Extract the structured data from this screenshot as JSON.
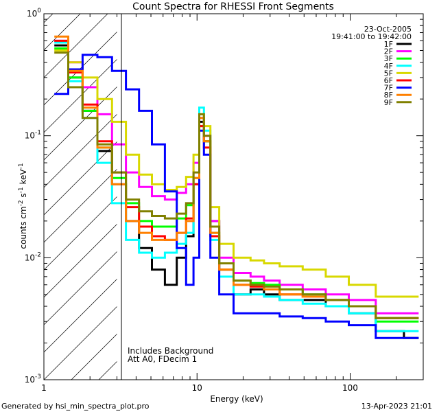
{
  "chart_data": {
    "type": "line",
    "title": "Count Spectra for RHESSI Front Segments",
    "date": "23-Oct-2005",
    "time_range": "19:41:00 to 19:42:00",
    "xlabel": "Energy (keV)",
    "ylabel_parts": [
      "counts cm",
      "-2",
      " s",
      "-1",
      " keV",
      "-1"
    ],
    "xscale": "log",
    "yscale": "log",
    "xlim": [
      1,
      300
    ],
    "ylim": [
      0.001,
      1
    ],
    "x_ticks": [
      {
        "value": 1,
        "label": "1"
      },
      {
        "value": 10,
        "label": "10"
      },
      {
        "value": 100,
        "label": "100"
      }
    ],
    "y_ticks": [
      {
        "value": 0.001,
        "base": "10",
        "exp": "-3"
      },
      {
        "value": 0.01,
        "base": "10",
        "exp": "-2"
      },
      {
        "value": 0.1,
        "base": "10",
        "exp": "-1"
      },
      {
        "value": 1,
        "base": "10",
        "exp": "0"
      }
    ],
    "shaded_region": {
      "from": 1,
      "to": 3,
      "style": "diagonal hatch"
    },
    "annotations": [
      "Includes Background",
      "Att A0, FDecim 1"
    ],
    "legend_position": "top-right",
    "series": [
      {
        "name": "1F",
        "color": "#000000",
        "values": [
          0.55,
          0.3,
          0.16,
          0.075,
          0.04,
          0.02,
          0.012,
          0.008,
          0.006,
          0.01,
          0.015,
          0.04,
          0.13,
          0.09,
          0.02,
          0.008,
          0.005,
          0.0055,
          0.005,
          0.0045,
          0.0045,
          0.004,
          0.0035,
          0.0025,
          0.0022
        ]
      },
      {
        "name": "2F",
        "color": "#ff00ff",
        "values": [
          0.6,
          0.4,
          0.25,
          0.15,
          0.085,
          0.05,
          0.038,
          0.032,
          0.03,
          0.034,
          0.04,
          0.06,
          0.14,
          0.1,
          0.02,
          0.01,
          0.0075,
          0.007,
          0.0065,
          0.006,
          0.0055,
          0.005,
          0.0045,
          0.0035,
          0.0035
        ]
      },
      {
        "name": "3F",
        "color": "#00ff00",
        "values": [
          0.52,
          0.3,
          0.16,
          0.08,
          0.045,
          0.028,
          0.02,
          0.018,
          0.018,
          0.021,
          0.027,
          0.045,
          0.12,
          0.09,
          0.016,
          0.008,
          0.0065,
          0.0062,
          0.006,
          0.0055,
          0.005,
          0.0045,
          0.004,
          0.003,
          0.003
        ]
      },
      {
        "name": "4F",
        "color": "#00ffff",
        "values": [
          0.58,
          0.28,
          0.14,
          0.06,
          0.028,
          0.014,
          0.011,
          0.01,
          0.011,
          0.013,
          0.016,
          0.04,
          0.17,
          0.11,
          0.014,
          0.007,
          0.005,
          0.005,
          0.0048,
          0.0045,
          0.0042,
          0.004,
          0.0035,
          0.0025,
          0.0025
        ]
      },
      {
        "name": "5F",
        "color": "#d8d800",
        "values": [
          0.5,
          0.4,
          0.3,
          0.2,
          0.13,
          0.07,
          0.048,
          0.04,
          0.036,
          0.038,
          0.046,
          0.07,
          0.15,
          0.12,
          0.026,
          0.013,
          0.01,
          0.0095,
          0.009,
          0.0085,
          0.008,
          0.007,
          0.006,
          0.0048,
          0.0048
        ]
      },
      {
        "name": "6F",
        "color": "#ff0000",
        "values": [
          0.6,
          0.33,
          0.18,
          0.09,
          0.05,
          0.026,
          0.018,
          0.015,
          0.014,
          0.016,
          0.021,
          0.04,
          0.12,
          0.08,
          0.015,
          0.008,
          0.006,
          0.0058,
          0.0055,
          0.005,
          0.0048,
          0.0045,
          0.004,
          0.0032,
          0.0032
        ]
      },
      {
        "name": "7F",
        "color": "#0000ff",
        "values": [
          0.22,
          0.35,
          0.46,
          0.44,
          0.34,
          0.24,
          0.16,
          0.085,
          0.035,
          0.012,
          0.006,
          0.01,
          0.11,
          0.07,
          0.01,
          0.005,
          0.0035,
          0.0035,
          0.0035,
          0.0033,
          0.0032,
          0.003,
          0.0028,
          0.0022,
          0.0022
        ]
      },
      {
        "name": "8F",
        "color": "#ff8000",
        "values": [
          0.65,
          0.34,
          0.17,
          0.08,
          0.04,
          0.02,
          0.016,
          0.014,
          0.014,
          0.016,
          0.02,
          0.045,
          0.14,
          0.09,
          0.016,
          0.008,
          0.006,
          0.006,
          0.0055,
          0.005,
          0.0048,
          0.0045,
          0.004,
          0.0032,
          0.0032
        ]
      },
      {
        "name": "9F",
        "color": "#808000",
        "values": [
          0.48,
          0.25,
          0.14,
          0.085,
          0.05,
          0.03,
          0.024,
          0.022,
          0.021,
          0.023,
          0.028,
          0.05,
          0.15,
          0.1,
          0.018,
          0.009,
          0.0065,
          0.006,
          0.0058,
          0.0055,
          0.005,
          0.0045,
          0.004,
          0.0032,
          0.0032
        ]
      }
    ],
    "energies": [
      1.3,
      1.6,
      2.0,
      2.5,
      3.1,
      3.8,
      4.6,
      5.6,
      6.8,
      8.0,
      9.0,
      10.0,
      10.7,
      11.5,
      13.0,
      15.0,
      20.0,
      25.0,
      30.0,
      40.0,
      60.0,
      80.0,
      120.0,
      180.0,
      280.0
    ]
  },
  "footer": {
    "generated_by": "Generated by hsi_min_spectra_plot.pro",
    "timestamp": "13-Apr-2023 21:01"
  }
}
